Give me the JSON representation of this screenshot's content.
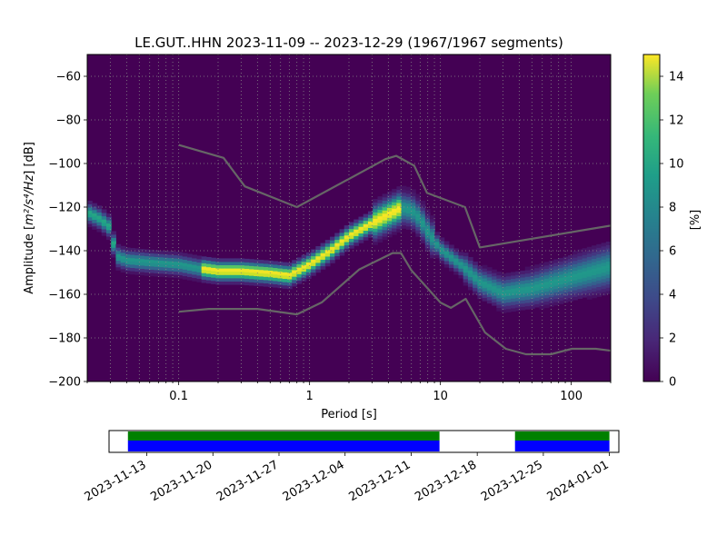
{
  "chart_data": [
    {
      "type": "heatmap",
      "title": "LE.GUT..HHN   2023-11-09 -- 2023-12-29  (1967/1967 segments)",
      "xlabel": "Period [s]",
      "ylabel_main": "Amplitude [",
      "ylabel_math": "m²/s⁴/Hz",
      "ylabel_tail": "] [dB]",
      "x_scale": "log",
      "xlim": [
        0.02,
        200
      ],
      "ylim": [
        -200,
        -50
      ],
      "x_ticks": [
        0.1,
        1,
        10,
        100
      ],
      "x_tick_labels": [
        "0.1",
        "1",
        "10",
        "100"
      ],
      "y_ticks": [
        -200,
        -180,
        -160,
        -140,
        -120,
        -100,
        -80,
        -60
      ],
      "y_tick_labels": [
        "−200",
        "−180",
        "−160",
        "−140",
        "−120",
        "−100",
        "−80",
        "−60"
      ],
      "grid": true,
      "colorbar": {
        "label": "[%]",
        "range": [
          0,
          15
        ],
        "ticks": [
          0,
          2,
          4,
          6,
          8,
          10,
          12,
          14
        ],
        "tick_labels": [
          "0",
          "2",
          "4",
          "6",
          "8",
          "10",
          "12",
          "14"
        ],
        "colormap": "viridis"
      },
      "mode_curve": {
        "period": [
          0.02,
          0.025,
          0.03,
          0.033,
          0.04,
          0.06,
          0.1,
          0.15,
          0.2,
          0.3,
          0.5,
          0.7,
          1,
          1.5,
          2,
          3,
          4,
          5,
          6,
          7,
          8,
          10,
          15,
          20,
          30,
          50,
          100,
          200
        ],
        "db": [
          -123,
          -126,
          -130,
          -143,
          -145,
          -146,
          -147,
          -149,
          -150,
          -150,
          -151,
          -152,
          -147,
          -140,
          -134,
          -128,
          -124,
          -121,
          -122,
          -126,
          -132,
          -140,
          -148,
          -155,
          -160,
          -158,
          -153,
          -148
        ]
      },
      "high_noise_model": {
        "period": [
          0.1,
          0.22,
          0.32,
          0.8,
          3.8,
          4.6,
          6.3,
          7.9,
          15.4,
          20,
          354.8
        ],
        "db": [
          -91.5,
          -97.4,
          -110.5,
          -120,
          -98,
          -96.5,
          -101,
          -113.5,
          -120,
          -138.5,
          -126
        ]
      },
      "low_noise_model": {
        "period": [
          0.1,
          0.17,
          0.4,
          0.8,
          1.24,
          2.4,
          4.3,
          5,
          6,
          10,
          12,
          15.6,
          21.9,
          31.6,
          45,
          70,
          101,
          154,
          328,
          600
        ],
        "db": [
          -168,
          -166.7,
          -166.7,
          -169.2,
          -163.7,
          -148.6,
          -141.1,
          -141.1,
          -149,
          -163.8,
          -166.2,
          -162.1,
          -177.5,
          -185,
          -187.5,
          -187.5,
          -185,
          -185,
          -187.5,
          -184.4
        ]
      }
    },
    {
      "type": "timeline",
      "x_tick_labels": [
        "2023-11-13",
        "2023-11-20",
        "2023-11-27",
        "2023-12-04",
        "2023-12-11",
        "2023-12-18",
        "2023-12-25",
        "2024-01-01"
      ],
      "xlim": [
        "2023-11-09",
        "2024-01-02"
      ],
      "data_coverage": [
        [
          "2023-11-11",
          "2023-12-14"
        ],
        [
          "2023-12-22",
          "2024-01-01"
        ]
      ],
      "psd_coverage": [
        [
          "2023-11-11",
          "2023-12-14"
        ],
        [
          "2023-12-22",
          "2024-01-01"
        ]
      ],
      "colors": {
        "data": "#0000ff",
        "psd": "#008000"
      }
    }
  ]
}
